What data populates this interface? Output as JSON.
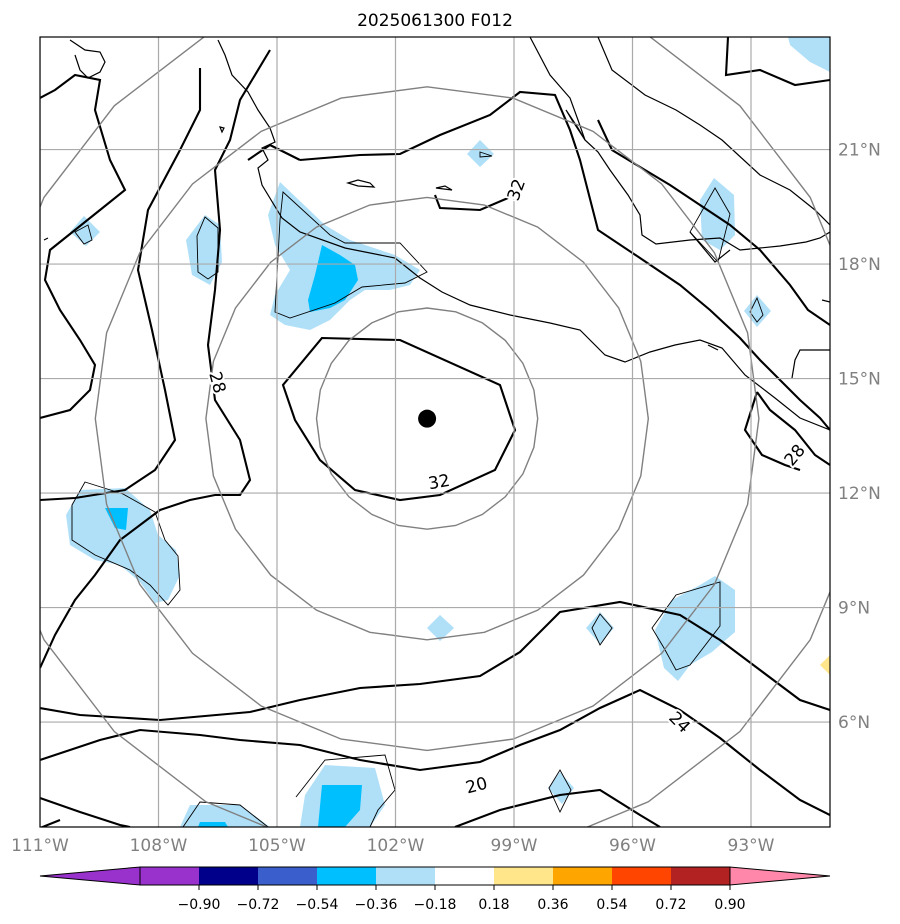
{
  "title": "2025061300 F012",
  "map": {
    "lon_range": [
      -111,
      -91
    ],
    "lat_range": [
      3.25,
      23.95
    ],
    "lon_ticks": [
      {
        "value": -111,
        "label": "111°W"
      },
      {
        "value": -108,
        "label": "108°W"
      },
      {
        "value": -105,
        "label": "105°W"
      },
      {
        "value": -102,
        "label": "102°W"
      },
      {
        "value": -99,
        "label": "99°W"
      },
      {
        "value": -96,
        "label": "96°W"
      },
      {
        "value": -93,
        "label": "93°W"
      }
    ],
    "lat_ticks": [
      {
        "value": 21,
        "label": "21°N"
      },
      {
        "value": 18,
        "label": "18°N"
      },
      {
        "value": 15,
        "label": "15°N"
      },
      {
        "value": 12,
        "label": "12°N"
      },
      {
        "value": 9,
        "label": "9°N"
      },
      {
        "value": 6,
        "label": "6°N"
      }
    ],
    "grid": true,
    "storm_center": {
      "lon": -101.2,
      "lat": 13.95
    },
    "range_ring_radii_deg": [
      2.8,
      5.6,
      8.4,
      11.2
    ],
    "contour_labels": [
      {
        "text": "32",
        "lon": -98.95,
        "lat": 19.95,
        "rot": -70
      },
      {
        "text": "28",
        "lon": -106.5,
        "lat": 14.9,
        "rot": 75
      },
      {
        "text": "32",
        "lon": -100.9,
        "lat": 12.3,
        "rot": -10
      },
      {
        "text": "28",
        "lon": -91.9,
        "lat": 13.0,
        "rot": -50
      },
      {
        "text": "24",
        "lon": -94.8,
        "lat": 6.0,
        "rot": 45
      },
      {
        "text": "20",
        "lon": -99.95,
        "lat": 4.35,
        "rot": -15
      }
    ],
    "colors": {
      "light_blue": "#b0e0f8",
      "medium_blue": "#00bfff",
      "yellow": "#ffe68a",
      "contour": "#000000",
      "ring": "#808080",
      "grid": "#aaaaaa",
      "tick_label": "#808080"
    }
  },
  "colorbar": {
    "tick_labels": [
      "−0.90",
      "−0.72",
      "−0.54",
      "−0.36",
      "−0.18",
      "0.18",
      "0.36",
      "0.54",
      "0.72",
      "0.90"
    ],
    "bins": [
      "#9932cc",
      "#00008b",
      "#3a5fcd",
      "#00bfff",
      "#b0e0f8",
      "#ffffff",
      "#ffe68a",
      "#ffa500",
      "#ff4500",
      "#b22222"
    ],
    "under_color": "#9932cc",
    "over_color": "#ff88aa"
  }
}
